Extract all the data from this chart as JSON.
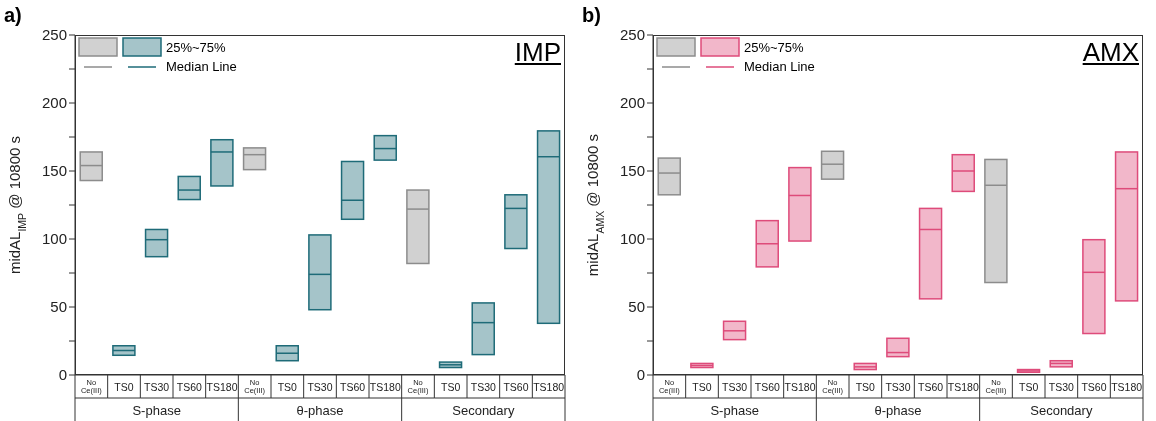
{
  "chart_data": [
    {
      "type": "box",
      "title": "IMP",
      "ylabel": "midAL$_{IMP}$ @ 10800 s",
      "annotations": [
        "a)",
        "S-phase",
        "θ-phase",
        "Secondary",
        "25%~75%",
        "Median Line"
      ],
      "categories": [
        "No Ce(III)",
        "TS0",
        "TS30",
        "TS60",
        "TS180",
        "No Ce(III)",
        "TS0",
        "TS30",
        "TS60",
        "TS180",
        "No Ce(III)",
        "TS0",
        "TS30",
        "TS60",
        "TS180"
      ],
      "ylim": [
        0,
        250
      ],
      "yticks": [
        0,
        {
          "value": 25,
          "label": null
        },
        50,
        {
          "value": 75,
          "label": null
        },
        100,
        {
          "value": 125,
          "label": null
        },
        150,
        {
          "value": 175,
          "label": null
        },
        200,
        {
          "value": 225,
          "label": null
        },
        250
      ],
      "series": [
        {
          "color": "#8c8c8c",
          "boxes": [
            {
              "low": 143,
              "q1": 143,
              "median": 154,
              "q3": 164,
              "high": 164
            },
            null,
            null,
            null,
            null,
            {
              "low": 151,
              "q1": 151,
              "median": 162,
              "q3": 167,
              "high": 167
            },
            null,
            null,
            null,
            null,
            {
              "low": 82,
              "q1": 82,
              "median": 122,
              "q3": 136,
              "high": 136
            },
            null,
            null,
            null,
            null
          ]
        },
        {
          "color": "#1e6b78",
          "boxes": [
            null,
            {
              "low": 14.5,
              "q1": 14.5,
              "median": 18,
              "q3": 21.5,
              "high": 21.5
            },
            {
              "low": 87,
              "q1": 87,
              "median": 99.5,
              "q3": 107,
              "high": 107
            },
            {
              "low": 129,
              "q1": 129,
              "median": 136,
              "q3": 146,
              "high": 146
            },
            {
              "low": 139,
              "q1": 139,
              "median": 164,
              "q3": 173,
              "high": 173
            },
            null,
            {
              "low": 10.5,
              "q1": 10.5,
              "median": 16,
              "q3": 21.5,
              "high": 21.5
            },
            {
              "low": 48,
              "q1": 48,
              "median": 74,
              "q3": 103,
              "high": 103
            },
            {
              "low": 114.5,
              "q1": 114.5,
              "median": 128.5,
              "q3": 157,
              "high": 157
            },
            {
              "low": 158,
              "q1": 158,
              "median": 166.5,
              "q3": 176,
              "high": 176
            },
            null,
            {
              "low": 5.5,
              "q1": 5.5,
              "median": 7.5,
              "q3": 9.5,
              "high": 9.5
            },
            {
              "low": 15,
              "q1": 15,
              "median": 38.5,
              "q3": 53,
              "high": 53
            },
            {
              "low": 93,
              "q1": 93,
              "median": 122.5,
              "q3": 132.5,
              "high": 132.5
            },
            {
              "low": 38,
              "q1": 38,
              "median": 160.5,
              "q3": 179.5,
              "high": 179.5
            }
          ]
        }
      ]
    },
    {
      "type": "box",
      "title": "AMX",
      "ylabel": "midAL$_{AMX}$ @ 10800 s",
      "annotations": [
        "b)",
        "S-phase",
        "θ-phase",
        "Secondary",
        "25%~75%",
        "Median Line"
      ],
      "categories": [
        "No Ce(III)",
        "TS0",
        "TS30",
        "TS60",
        "TS180",
        "No Ce(III)",
        "TS0",
        "TS30",
        "TS60",
        "TS180",
        "No Ce(III)",
        "TS0",
        "TS30",
        "TS60",
        "TS180"
      ],
      "ylim": [
        0,
        250
      ],
      "yticks": [
        0,
        {
          "value": 25,
          "label": null
        },
        50,
        {
          "value": 75,
          "label": null
        },
        100,
        {
          "value": 125,
          "label": null
        },
        150,
        {
          "value": 175,
          "label": null
        },
        200,
        {
          "value": 225,
          "label": null
        },
        250
      ],
      "series": [
        {
          "color": "#8c8c8c",
          "boxes": [
            {
              "low": 132.5,
              "q1": 132.5,
              "median": 148.5,
              "q3": 159.5,
              "high": 159.5
            },
            null,
            null,
            null,
            null,
            {
              "low": 144,
              "q1": 144,
              "median": 155,
              "q3": 164.5,
              "high": 164.5
            },
            null,
            null,
            null,
            null,
            {
              "low": 68,
              "q1": 68,
              "median": 139.5,
              "q3": 158.5,
              "high": 158.5
            },
            null,
            null,
            null,
            null
          ]
        },
        {
          "color": "#de4b7a",
          "boxes": [
            null,
            {
              "low": 5.5,
              "q1": 5.5,
              "median": 7,
              "q3": 8.5,
              "high": 8.5
            },
            {
              "low": 26,
              "q1": 26,
              "median": 32.5,
              "q3": 39.5,
              "high": 39.5
            },
            {
              "low": 79.5,
              "q1": 79.5,
              "median": 96.5,
              "q3": 113.5,
              "high": 113.5
            },
            {
              "low": 98.5,
              "q1": 98.5,
              "median": 132,
              "q3": 152.5,
              "high": 152.5
            },
            null,
            {
              "low": 4,
              "q1": 4,
              "median": 6,
              "q3": 8.5,
              "high": 8.5
            },
            {
              "low": 13.5,
              "q1": 13.5,
              "median": 16.5,
              "q3": 27,
              "high": 27
            },
            {
              "low": 56,
              "q1": 56,
              "median": 107,
              "q3": 122.5,
              "high": 122.5
            },
            {
              "low": 135,
              "q1": 135,
              "median": 150,
              "q3": 162,
              "high": 162
            },
            null,
            {
              "low": 2,
              "q1": 2,
              "median": 3,
              "q3": 4,
              "high": 4
            },
            {
              "low": 6,
              "q1": 6,
              "median": 8.5,
              "q3": 10.5,
              "high": 10.5
            },
            {
              "low": 30.5,
              "q1": 30.5,
              "median": 75.5,
              "q3": 99.5,
              "high": 99.5
            },
            {
              "low": 54.5,
              "q1": 54.5,
              "median": 137,
              "q3": 164,
              "high": 164
            }
          ]
        }
      ]
    }
  ]
}
